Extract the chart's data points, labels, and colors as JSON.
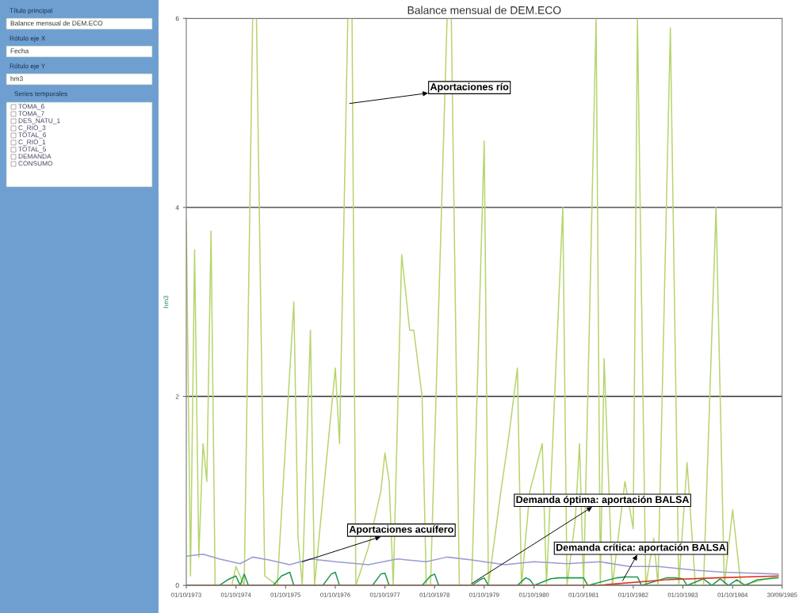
{
  "chart_data": {
    "type": "line",
    "title": "Balance mensual de DEM.ECO",
    "ylabel": "hm3",
    "xlim": [
      "1973-10-01",
      "1985-09-30"
    ],
    "xticks": [
      {
        "value": "1973-10-01",
        "label": "01/10/1973"
      },
      {
        "value": "1974-10-01",
        "label": "01/10/1974"
      },
      {
        "value": "1975-10-01",
        "label": "01/10/1975"
      },
      {
        "value": "1976-10-01",
        "label": "01/10/1976"
      },
      {
        "value": "1977-10-01",
        "label": "01/10/1977"
      },
      {
        "value": "1978-10-01",
        "label": "01/10/1978"
      },
      {
        "value": "1979-10-01",
        "label": "01/10/1979"
      },
      {
        "value": "1980-10-01",
        "label": "01/10/1980"
      },
      {
        "value": "1981-10-01",
        "label": "01/10/1981"
      },
      {
        "value": "1982-10-01",
        "label": "01/10/1982"
      },
      {
        "value": "1983-10-01",
        "label": "01/10/1983"
      },
      {
        "value": "1984-10-01",
        "label": "01/10/1984"
      },
      {
        "value": "1985-09-30",
        "label": "30/09/1985"
      }
    ],
    "ylim": [
      0,
      6
    ],
    "yticks": [
      0,
      2,
      4,
      6
    ],
    "grid": "y",
    "legend": false,
    "line_style": "solid",
    "marker": "none",
    "series": [
      {
        "color": "#b8d46e",
        "x": [
          "1973-10",
          "1973-11",
          "1973-12",
          "1974-01",
          "1974-02",
          "1974-03",
          "1974-04",
          "1974-05",
          "1974-09",
          "1974-10",
          "1974-12",
          "1975-02",
          "1975-03",
          "1975-05",
          "1975-08",
          "1975-12",
          "1976-01",
          "1976-02",
          "1976-04",
          "1976-05",
          "1976-10",
          "1976-11",
          "1977-01",
          "1977-02",
          "1977-03",
          "1977-06",
          "1977-09",
          "1977-10",
          "1977-11",
          "1977-12",
          "1978-02",
          "1978-04",
          "1978-05",
          "1978-07",
          "1978-08",
          "1978-09",
          "1979-01",
          "1979-02",
          "1979-04",
          "1979-07",
          "1979-10",
          "1979-11",
          "1980-02",
          "1980-04",
          "1980-06",
          "1980-07",
          "1980-09",
          "1980-12",
          "1981-01",
          "1981-05",
          "1981-06",
          "1981-08",
          "1981-09",
          "1981-10",
          "1982-01",
          "1982-02",
          "1982-03",
          "1982-05",
          "1982-08",
          "1982-10",
          "1982-11",
          "1983-01",
          "1983-03",
          "1983-04",
          "1983-07",
          "1983-09",
          "1983-11",
          "1984-01",
          "1984-03",
          "1984-06",
          "1984-08",
          "1984-10",
          "1984-12",
          "1985-09"
        ],
        "values": [
          3.87,
          0.1,
          3.55,
          0.3,
          1.5,
          1.1,
          3.75,
          0,
          0,
          0.2,
          0,
          6,
          6,
          0.1,
          0,
          3.0,
          0.5,
          0,
          2.7,
          0,
          2.3,
          1.5,
          6,
          6,
          0,
          0.4,
          1.0,
          1.4,
          1.1,
          0,
          3.5,
          2.7,
          2.7,
          2.0,
          0,
          0,
          6,
          6,
          0,
          0,
          4.7,
          0,
          1.0,
          1.6,
          2.3,
          0,
          1.0,
          1.5,
          0,
          4.0,
          0,
          0.7,
          1.5,
          0,
          6,
          0,
          2.4,
          0,
          1.1,
          0.6,
          6,
          0,
          0.5,
          0,
          5.9,
          0,
          1.3,
          0,
          0,
          4.0,
          0,
          0.8,
          0,
          0.1
        ]
      },
      {
        "color": "#9a9ad6",
        "x": [
          "1973-10",
          "1974-02",
          "1974-06",
          "1974-11",
          "1975-02",
          "1975-06",
          "1975-11",
          "1976-04",
          "1976-10",
          "1977-06",
          "1978-01",
          "1978-08",
          "1979-01",
          "1979-07",
          "1980-03",
          "1980-10",
          "1981-06",
          "1982-02",
          "1982-09",
          "1983-04",
          "1984-01",
          "1984-08",
          "1985-09"
        ],
        "values": [
          0.31,
          0.33,
          0.28,
          0.23,
          0.3,
          0.27,
          0.22,
          0.28,
          0.25,
          0.22,
          0.28,
          0.25,
          0.3,
          0.27,
          0.22,
          0.25,
          0.23,
          0.25,
          0.2,
          0.2,
          0.16,
          0.14,
          0.12
        ]
      },
      {
        "color": "#1e9a4c",
        "x": [
          "1973-10",
          "1974-06",
          "1974-08",
          "1974-10",
          "1974-11",
          "1974-12",
          "1975-01",
          "1975-07",
          "1975-09",
          "1975-11",
          "1975-12",
          "1976-07",
          "1976-09",
          "1976-10",
          "1976-11",
          "1977-07",
          "1977-09",
          "1977-10",
          "1977-11",
          "1978-07",
          "1978-09",
          "1978-10",
          "1978-11",
          "1979-07",
          "1979-09",
          "1979-10",
          "1979-11",
          "1980-06",
          "1980-08",
          "1980-09",
          "1980-10",
          "1981-02",
          "1981-04",
          "1981-10",
          "1981-11",
          "1982-06",
          "1982-08",
          "1982-11",
          "1982-12",
          "1983-06",
          "1983-08",
          "1983-10",
          "1983-11",
          "1984-03",
          "1984-05",
          "1984-07",
          "1984-09",
          "1984-11",
          "1985-01",
          "1985-04",
          "1985-09"
        ],
        "values": [
          0,
          0,
          0.06,
          0.1,
          0,
          0.12,
          0,
          0,
          0.1,
          0.14,
          0,
          0,
          0.12,
          0.14,
          0,
          0,
          0.12,
          0.13,
          0,
          0,
          0.1,
          0.12,
          0,
          0,
          0.06,
          0.08,
          0,
          0,
          0.08,
          0.06,
          0,
          0.07,
          0.08,
          0.08,
          0,
          0.08,
          0.09,
          0.09,
          0,
          0.08,
          0.08,
          0.07,
          0,
          0.07,
          0,
          0.07,
          0,
          0.06,
          0,
          0.06,
          0.08
        ]
      },
      {
        "color": "#e03322",
        "x": [
          "1973-10",
          "1982-01",
          "1983-06",
          "1984-06",
          "1985-09"
        ],
        "values": [
          0,
          0,
          0.06,
          0.08,
          0.1
        ]
      }
    ],
    "annotations": [
      {
        "text": "Aportaciones río",
        "x": "1977-01-15",
        "y": 5.1
      },
      {
        "text": "Aportaciones acuífero",
        "x": "1976-02-01",
        "y": 0.25
      },
      {
        "text": "Demanda óptima: aportación BALSA",
        "x": "1979-07-01",
        "y": 0.02
      },
      {
        "text": "Demanda crítica: aportación BALSA",
        "x": "1982-07-15",
        "y": 0.05
      },
      "Título principal",
      "Balance mensual de DEM.ECO",
      "Rótulo eje X",
      "Fecha",
      "Rótulo eje Y",
      "hm3",
      "Series temporales",
      "TOMA_6",
      "TOMA_7",
      "DES_NATU_1",
      "C_RIO_3",
      "TOTAL_6",
      "C_RIO_1",
      "TOTAL_5",
      "DEMANDA",
      "CONSUMO"
    ]
  }
}
